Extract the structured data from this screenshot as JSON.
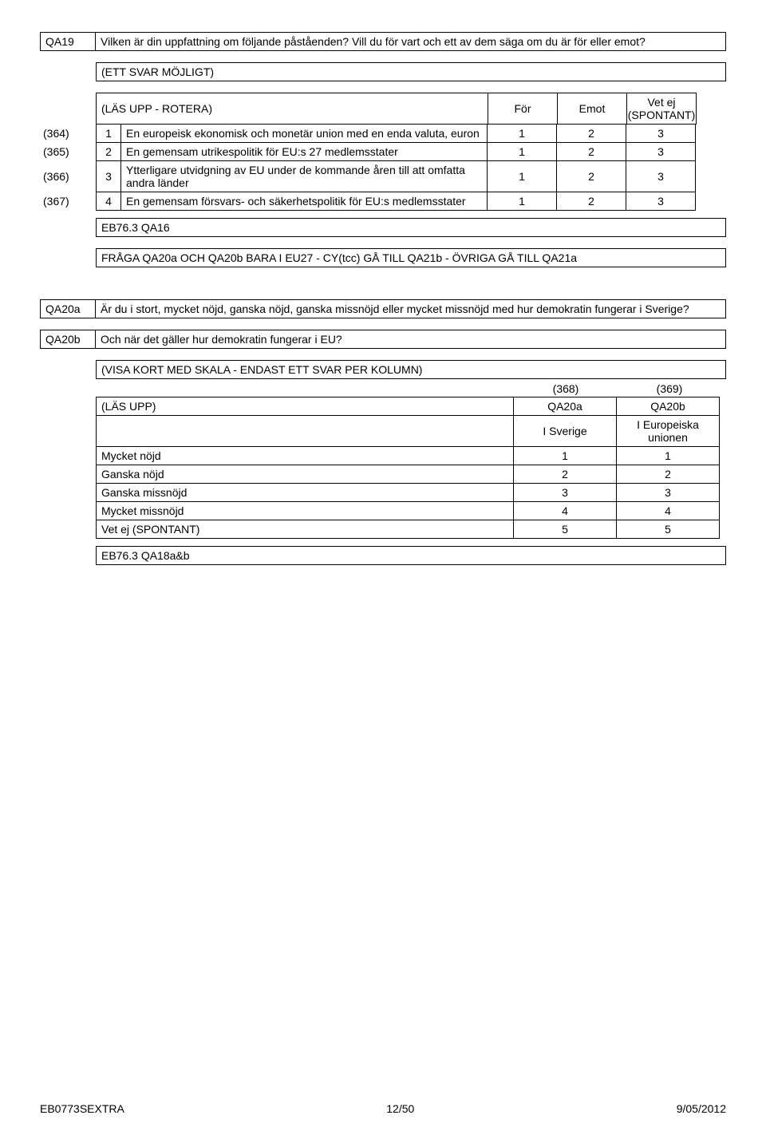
{
  "qa19": {
    "id": "QA19",
    "question": "Vilken är din uppfattning om följande påståenden? Vill du för vart och ett av dem säga om du är för eller emot?",
    "note": "(ETT SVAR MÖJLIGT)",
    "header_hint": "(LÄS UPP - ROTERA)",
    "columns": [
      "För",
      "Emot",
      "Vet ej (SPONTANT)"
    ],
    "col_widths": {
      "side": 70,
      "num": 32,
      "text": 460,
      "val": 88
    },
    "rows": [
      {
        "side": "(364)",
        "n": "1",
        "text": "En europeisk ekonomisk och monetär union med en enda valuta, euron",
        "v": [
          "1",
          "2",
          "3"
        ]
      },
      {
        "side": "(365)",
        "n": "2",
        "text": "En gemensam utrikespolitik för EU:s 27 medlemsstater",
        "v": [
          "1",
          "2",
          "3"
        ]
      },
      {
        "side": "(366)",
        "n": "3",
        "text": "Ytterligare utvidgning av EU under de kommande åren till att omfatta andra länder",
        "v": [
          "1",
          "2",
          "3"
        ]
      },
      {
        "side": "(367)",
        "n": "4",
        "text": "En gemensam försvars- och säkerhetspolitik för EU:s medlemsstater",
        "v": [
          "1",
          "2",
          "3"
        ]
      }
    ],
    "ref": "EB76.3 QA16",
    "routing": "FRÅGA QA20a OCH QA20b BARA I EU27 - CY(tcc) GÅ TILL QA21b - ÖVRIGA GÅ TILL QA21a"
  },
  "qa20a": {
    "id": "QA20a",
    "question": "Är du i stort, mycket nöjd, ganska nöjd, ganska missnöjd eller mycket missnöjd med hur demokratin fungerar i Sverige?"
  },
  "qa20b": {
    "id": "QA20b",
    "question": "Och när det gäller hur demokratin fungerar i EU?",
    "note": "(VISA KORT MED SKALA - ENDAST ETT SVAR PER KOLUMN)",
    "code_left": "(368)",
    "code_right": "(369)",
    "header_hint": "(LÄS UPP)",
    "col_headers": [
      "QA20a",
      "QA20b"
    ],
    "sub_headers": [
      "I Sverige",
      "I Europeiska unionen"
    ],
    "col_widths": {
      "side": 70,
      "text": 524,
      "val": 130
    },
    "rows": [
      {
        "label": "Mycket nöjd",
        "v": [
          "1",
          "1"
        ]
      },
      {
        "label": "Ganska nöjd",
        "v": [
          "2",
          "2"
        ]
      },
      {
        "label": "Ganska missnöjd",
        "v": [
          "3",
          "3"
        ]
      },
      {
        "label": "Mycket missnöjd",
        "v": [
          "4",
          "4"
        ]
      },
      {
        "label": "Vet ej (SPONTANT)",
        "v": [
          "5",
          "5"
        ]
      }
    ],
    "ref": "EB76.3 QA18a&b"
  },
  "footer": {
    "left": "EB0773SEXTRA",
    "center": "12/50",
    "right": "9/05/2012"
  }
}
